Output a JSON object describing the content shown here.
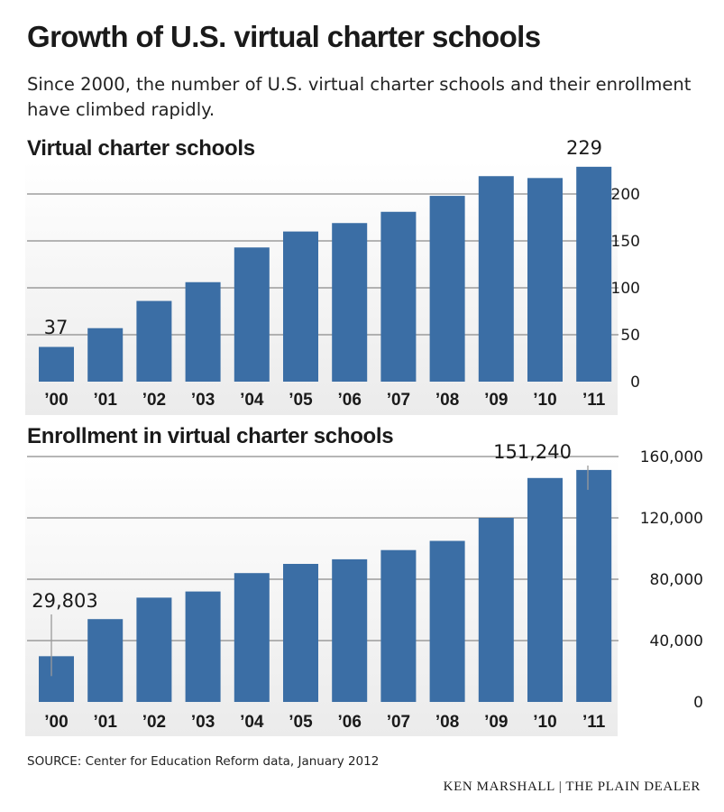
{
  "title": "Growth of U.S. virtual charter schools",
  "subtitle": "Since 2000, the number of U.S. virtual charter schools and their enrollment have climbed rapidly.",
  "source": "SOURCE: Center for Education Reform data, January 2012",
  "credit": "KEN MARSHALL | THE PLAIN DEALER",
  "colors": {
    "bar": "#3b6ea5",
    "grid": "#8a8a8a",
    "panel": "#ebebeb"
  },
  "chart_data": [
    {
      "type": "bar",
      "title": "Virtual charter schools",
      "categories": [
        "’00",
        "’01",
        "’02",
        "’03",
        "’04",
        "’05",
        "’06",
        "’07",
        "’08",
        "’09",
        "’10",
        "’11"
      ],
      "values": [
        37,
        57,
        86,
        106,
        143,
        160,
        169,
        181,
        198,
        219,
        217,
        229
      ],
      "ylim": [
        0,
        250
      ],
      "yticks": [
        0,
        50,
        100,
        150,
        200
      ],
      "ytick_labels": [
        "0",
        "50",
        "100",
        "150",
        "200"
      ],
      "annotations": [
        {
          "index": 0,
          "label": "37"
        },
        {
          "index": 11,
          "label": "229"
        }
      ],
      "xlabel": "",
      "ylabel": "",
      "grid": true,
      "y_axis_side": "right"
    },
    {
      "type": "bar",
      "title": "Enrollment in virtual charter schools",
      "categories": [
        "’00",
        "’01",
        "’02",
        "’03",
        "’04",
        "’05",
        "’06",
        "’07",
        "’08",
        "’09",
        "’10",
        "’11"
      ],
      "values": [
        29803,
        54000,
        68000,
        72000,
        84000,
        90000,
        93000,
        99000,
        105000,
        120000,
        146000,
        151240
      ],
      "ylim": [
        0,
        170000
      ],
      "yticks": [
        0,
        40000,
        80000,
        120000,
        160000
      ],
      "ytick_labels": [
        "0",
        "40,000",
        "80,000",
        "120,000",
        "160,000"
      ],
      "annotations": [
        {
          "index": 0,
          "label": "29,803"
        },
        {
          "index": 11,
          "label": "151,240"
        }
      ],
      "xlabel": "",
      "ylabel": "",
      "grid": true,
      "y_axis_side": "right"
    }
  ]
}
